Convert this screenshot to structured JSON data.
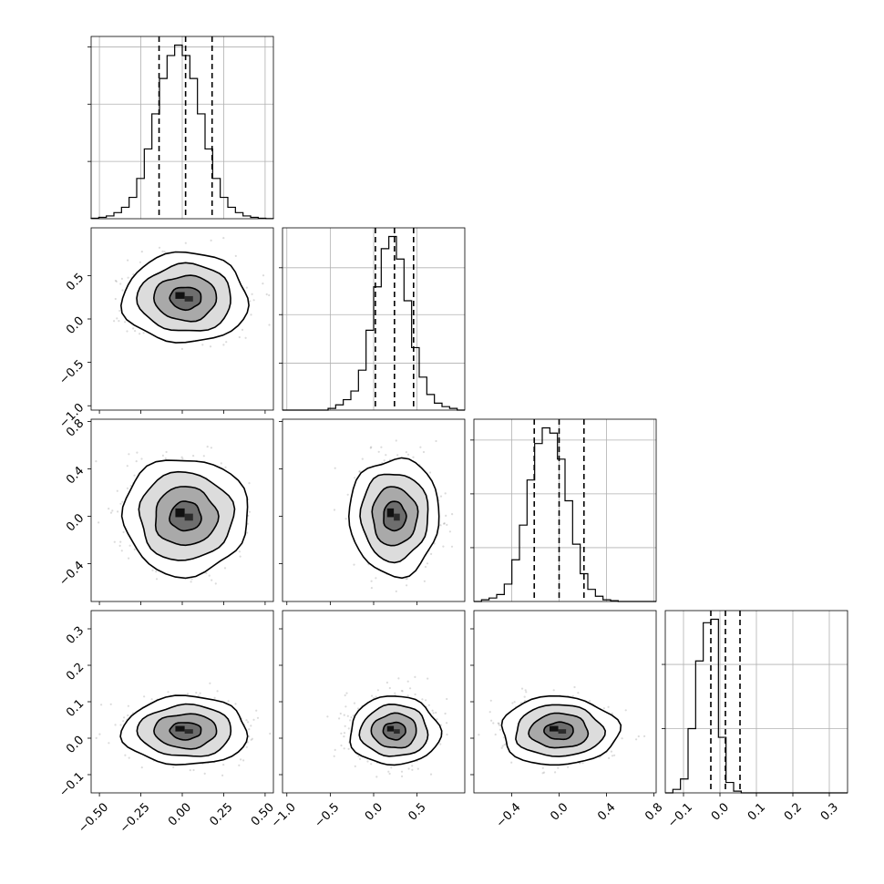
{
  "chart_data": {
    "type": "corner",
    "n_params": 4,
    "grid": true,
    "params": [
      {
        "range": [
          -0.55,
          0.55
        ],
        "ticks": [
          -0.5,
          -0.25,
          0.0,
          0.25,
          0.5
        ],
        "tick_labels": [
          "−0.50",
          "−0.25",
          "0.00",
          "0.25",
          "0.50"
        ],
        "quantiles": [
          -0.14,
          0.02,
          0.18
        ],
        "hist_heights": [
          0.003,
          0.008,
          0.016,
          0.035,
          0.066,
          0.123,
          0.232,
          0.402,
          0.604,
          0.808,
          0.94,
          1.0,
          0.94,
          0.808,
          0.604,
          0.402,
          0.232,
          0.123,
          0.066,
          0.035,
          0.016,
          0.008,
          0.003,
          0.001
        ],
        "hist_ticks": [
          0.33,
          0.66,
          0.99
        ]
      },
      {
        "range": [
          -1.05,
          1.05
        ],
        "ticks": [
          -1.0,
          -0.5,
          0.0,
          0.5
        ],
        "tick_labels": [
          "−1.0",
          "−0.5",
          "0.0",
          "0.5"
        ],
        "quantiles": [
          0.02,
          0.24,
          0.46
        ],
        "hist_heights": [
          0.0,
          0.0,
          0.0,
          0.0,
          0.0,
          0.0,
          0.01,
          0.03,
          0.06,
          0.11,
          0.23,
          0.46,
          0.71,
          0.93,
          1.0,
          0.87,
          0.63,
          0.36,
          0.19,
          0.09,
          0.04,
          0.02,
          0.01,
          0.0
        ],
        "hist_ticks": [
          0.27,
          0.55,
          0.82
        ]
      },
      {
        "range": [
          -0.72,
          0.82
        ],
        "ticks": [
          -0.4,
          0.0,
          0.4,
          0.8
        ],
        "tick_labels": [
          "−0.4",
          "0.0",
          "0.4",
          "0.8"
        ],
        "quantiles": [
          -0.21,
          0.0,
          0.21
        ],
        "hist_heights": [
          0.0,
          0.01,
          0.02,
          0.04,
          0.1,
          0.24,
          0.44,
          0.7,
          0.91,
          1.0,
          0.97,
          0.82,
          0.58,
          0.33,
          0.16,
          0.07,
          0.03,
          0.01,
          0.005,
          0.0,
          0.0,
          0.0,
          0.0,
          0.0
        ],
        "hist_ticks": [
          0.31,
          0.62,
          0.93
        ]
      },
      {
        "range": [
          -0.15,
          0.35
        ],
        "ticks": [
          -0.1,
          0.0,
          0.1,
          0.2,
          0.3
        ],
        "tick_labels": [
          "−0.1",
          "0.0",
          "0.1",
          "0.2",
          "0.3"
        ],
        "quantiles": [
          -0.025,
          0.015,
          0.055
        ],
        "hist_heights": [
          0.0,
          0.02,
          0.08,
          0.37,
          0.76,
          0.98,
          1.0,
          0.32,
          0.06,
          0.01,
          0.0,
          0.0,
          0.0,
          0.0,
          0.0,
          0.0,
          0.0,
          0.0,
          0.0,
          0.0,
          0.0,
          0.0,
          0.0,
          0.0
        ],
        "hist_ticks": [
          0.37,
          0.74
        ]
      }
    ],
    "pairs": [
      {
        "row": 1,
        "col": 0,
        "mean": [
          0.02,
          0.24
        ],
        "std": [
          0.16,
          0.22
        ],
        "rho": 0.0,
        "y_ticks": [
          -1.0,
          -0.5,
          0.0,
          0.5
        ],
        "y_tick_labels": [
          "−1.0",
          "−0.5",
          "0.0",
          "0.5"
        ]
      },
      {
        "row": 2,
        "col": 0,
        "mean": [
          0.02,
          0.0
        ],
        "std": [
          0.16,
          0.21
        ],
        "rho": 0.0,
        "y_ticks": [
          -0.4,
          0.0,
          0.4,
          0.8
        ],
        "y_tick_labels": [
          "−0.4",
          "0.0",
          "0.4",
          "0.8"
        ]
      },
      {
        "row": 2,
        "col": 1,
        "mean": [
          0.24,
          0.0
        ],
        "std": [
          0.22,
          0.21
        ],
        "rho": 0.0
      },
      {
        "row": 3,
        "col": 0,
        "mean": [
          0.02,
          0.02
        ],
        "std": [
          0.16,
          0.04
        ],
        "rho": 0.0,
        "y_ticks": [
          -0.1,
          0.0,
          0.1,
          0.2,
          0.3
        ],
        "y_tick_labels": [
          "−0.1",
          "0.0",
          "0.1",
          "0.2",
          "0.3"
        ]
      },
      {
        "row": 3,
        "col": 1,
        "mean": [
          0.24,
          0.02
        ],
        "std": [
          0.22,
          0.04
        ],
        "rho": 0.0
      },
      {
        "row": 3,
        "col": 2,
        "mean": [
          0.0,
          0.02
        ],
        "std": [
          0.21,
          0.04
        ],
        "rho": 0.0
      }
    ],
    "contour_levels_sigma": [
      0.5,
      1.0,
      1.5,
      2.0
    ]
  }
}
